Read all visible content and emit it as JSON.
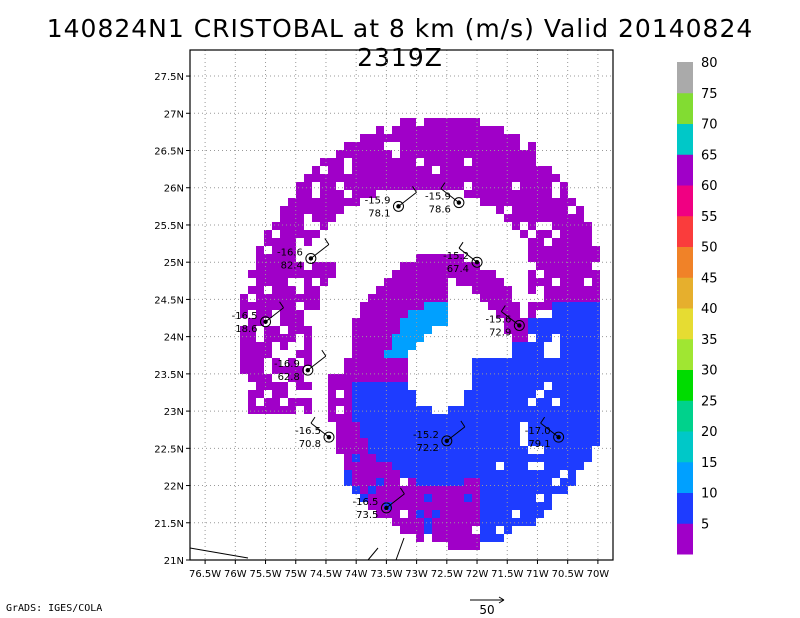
{
  "title": "140824N1 CRISTOBAL at 8 km (m/s) Valid 20140824 2319Z",
  "credit": "GrADS: IGES/COLA",
  "reference_vector": {
    "label": "50"
  },
  "map": {
    "lon_range": [
      -76.75,
      -69.75
    ],
    "lat_range": [
      21.0,
      27.85
    ],
    "grid": true,
    "lon_ticks": [
      "76.5W",
      "76W",
      "75.5W",
      "75W",
      "74.5W",
      "74W",
      "73.5W",
      "73W",
      "72.5W",
      "72W",
      "71.5W",
      "71W",
      "70.5W",
      "70W"
    ],
    "lat_ticks": [
      "21N",
      "21.5N",
      "22N",
      "22.5N",
      "23N",
      "23.5N",
      "24N",
      "24.5N",
      "25N",
      "25.5N",
      "26N",
      "26.5N",
      "27N",
      "27.5N"
    ],
    "colors": {
      "purple": "#a000c8",
      "blue": "#1e3cff",
      "lightblue": "#00a0ff",
      "violet": "#8c46d2",
      "vector": "#a0a0a0"
    }
  },
  "colorbar": {
    "colors": [
      "#a000c8",
      "#1e3cff",
      "#00a0ff",
      "#00c8c8",
      "#00d28c",
      "#00dc00",
      "#a0e632",
      "#e6dc32",
      "#e6af2d",
      "#f08228",
      "#fa3c3c",
      "#f00082",
      "#a000c8",
      "#00c8c8",
      "#82dc32",
      "#aaaaaa"
    ],
    "labels": [
      "5",
      "10",
      "15",
      "20",
      "25",
      "30",
      "35",
      "40",
      "45",
      "50",
      "55",
      "60",
      "65",
      "70",
      "75",
      "80"
    ]
  },
  "stations": [
    {
      "lon": -73.3,
      "lat": 25.75,
      "top": "-15.9",
      "bottom": "78.1"
    },
    {
      "lon": -72.3,
      "lat": 25.8,
      "top": "-15.9",
      "bottom": "78.6"
    },
    {
      "lon": -74.75,
      "lat": 25.05,
      "top": "-16.6",
      "bottom": "82.4"
    },
    {
      "lon": -72.0,
      "lat": 25.0,
      "top": "-15.2",
      "bottom": "67.4"
    },
    {
      "lon": -75.5,
      "lat": 24.2,
      "top": "-16.5",
      "bottom": "18.6"
    },
    {
      "lon": -71.3,
      "lat": 24.15,
      "top": "-15.6",
      "bottom": "72.9"
    },
    {
      "lon": -74.8,
      "lat": 23.55,
      "top": "-16.9",
      "bottom": "62.8"
    },
    {
      "lon": -74.45,
      "lat": 22.65,
      "top": "-16.5",
      "bottom": "70.8"
    },
    {
      "lon": -72.5,
      "lat": 22.6,
      "top": "-15.2",
      "bottom": "72.2"
    },
    {
      "lon": -70.65,
      "lat": 22.65,
      "top": "-17.0",
      "bottom": "79.1"
    },
    {
      "lon": -73.5,
      "lat": 21.7,
      "top": "-16.5",
      "bottom": "73.5"
    }
  ]
}
